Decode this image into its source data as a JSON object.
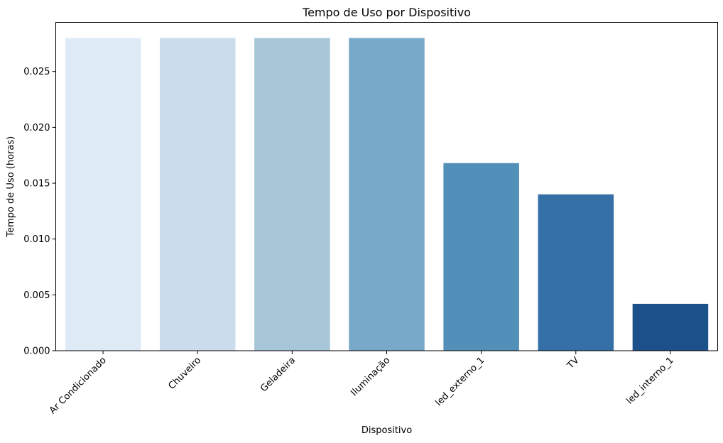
{
  "chart_data": {
    "type": "bar",
    "title": "Tempo de Uso por Dispositivo",
    "xlabel": "Dispositivo",
    "ylabel": "Tempo de Uso (horas)",
    "categories": [
      "Ar Condicionado",
      "Chuveiro",
      "Geladeira",
      "Iluminação",
      "led_externo_1",
      "TV",
      "led_interno_1"
    ],
    "values": [
      0.028,
      0.028,
      0.028,
      0.028,
      0.0168,
      0.014,
      0.0042
    ],
    "ylim": [
      0,
      0.0294
    ],
    "yticks": [
      "0.000",
      "0.005",
      "0.010",
      "0.015",
      "0.020",
      "0.025"
    ],
    "ytick_values": [
      0,
      0.005,
      0.01,
      0.015,
      0.02,
      0.025
    ],
    "colors": [
      "#deeaf6",
      "#cbdcec",
      "#a7c6d8",
      "#79a9c9",
      "#5290b9",
      "#346fa6",
      "#1c508a"
    ],
    "grid": false,
    "legend": "none"
  }
}
